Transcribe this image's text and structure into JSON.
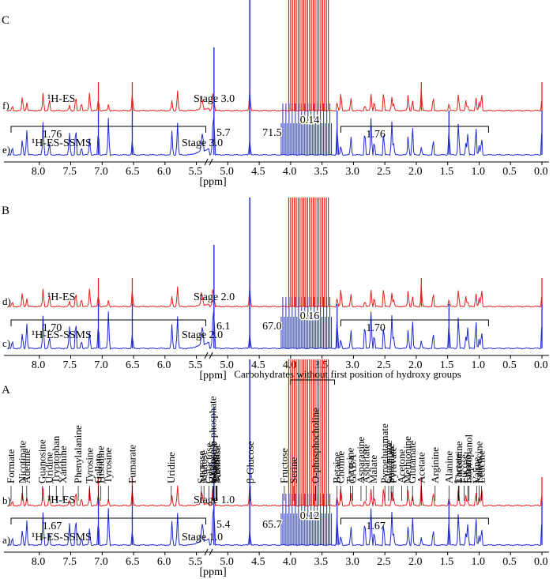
{
  "figure": {
    "description_free": true,
    "colors": {
      "es_trace": "#e8201c",
      "ssms_trace": "#1f2bd1",
      "axis": "#000000"
    }
  },
  "chart_data": [
    {
      "panel": "C",
      "type": "line",
      "xlabel": "[ppm]",
      "xlim": [
        8.5,
        0.0
      ],
      "x_reversed": true,
      "x_ticks": [
        "8.0",
        "7.5",
        "7.0",
        "6.5",
        "6.0",
        "5.5",
        "5.0",
        "4.5",
        "4.0",
        "3.5",
        "3.0",
        "2.5",
        "2.0",
        "1.5",
        "1.0",
        "0.5",
        "0.0"
      ],
      "series": [
        {
          "trace_label": "f)",
          "name": "¹H-ES",
          "stage": "Stage 3.0",
          "color": "#e8201c"
        },
        {
          "trace_label": "e)",
          "name": "¹H-ES-SSMS",
          "stage": "Stage 3.0",
          "color": "#1f2bd1"
        }
      ],
      "scale_factors": {
        "aromatic": "1.76",
        "anomeric": "5.7",
        "region_4": "71.5",
        "region_3": "0.14",
        "aliphatic": "1.76"
      },
      "peaks_ppm": [
        8.43,
        8.27,
        8.2,
        7.94,
        7.84,
        7.52,
        7.42,
        7.33,
        7.2,
        7.06,
        6.9,
        6.52,
        5.89,
        5.8,
        5.42,
        5.4,
        5.24,
        5.22,
        4.65,
        4.07,
        4.0,
        3.9,
        3.82,
        3.74,
        3.66,
        3.6,
        3.55,
        3.47,
        3.41,
        3.4,
        3.26,
        3.2,
        3.04,
        2.82,
        2.72,
        2.67,
        2.52,
        2.39,
        2.36,
        2.13,
        2.06,
        1.92,
        1.73,
        1.48,
        1.33,
        1.21,
        1.18,
        1.05,
        1.0,
        0.96,
        0.0
      ]
    },
    {
      "panel": "B",
      "type": "line",
      "xlabel": "[ppm]",
      "xlim": [
        8.5,
        0.0
      ],
      "x_reversed": true,
      "x_ticks": [
        "8.0",
        "7.5",
        "7.0",
        "6.5",
        "6.0",
        "5.5",
        "5.0",
        "4.5",
        "4.0",
        "3.5",
        "3.0",
        "2.5",
        "2.0",
        "1.5",
        "1.0",
        "0.5",
        "0.0"
      ],
      "series": [
        {
          "trace_label": "d)",
          "name": "¹H-ES",
          "stage": "Stage 2.0",
          "color": "#e8201c"
        },
        {
          "trace_label": "c)",
          "name": "¹H-ES-SSMS",
          "stage": "Stage 2.0",
          "color": "#1f2bd1"
        }
      ],
      "scale_factors": {
        "aromatic": "1.70",
        "anomeric": "6.1",
        "region_4": "67.0",
        "region_3": "0.16",
        "aliphatic": "1.70"
      },
      "peaks_ppm": [
        8.43,
        8.27,
        8.2,
        7.94,
        7.84,
        7.52,
        7.42,
        7.33,
        7.2,
        7.06,
        6.9,
        6.52,
        5.89,
        5.8,
        5.42,
        5.4,
        5.24,
        5.22,
        4.65,
        4.07,
        4.0,
        3.9,
        3.82,
        3.74,
        3.66,
        3.6,
        3.55,
        3.47,
        3.41,
        3.4,
        3.26,
        3.2,
        3.04,
        2.82,
        2.72,
        2.67,
        2.52,
        2.39,
        2.36,
        2.13,
        2.06,
        1.92,
        1.73,
        1.48,
        1.33,
        1.21,
        1.18,
        1.05,
        1.0,
        0.96,
        0.0
      ]
    },
    {
      "panel": "A",
      "type": "line",
      "xlabel": "[ppm]",
      "xlim": [
        8.5,
        0.0
      ],
      "x_reversed": true,
      "x_ticks": [
        "8.0",
        "7.5",
        "7.0",
        "6.5",
        "6.0",
        "5.5",
        "5.0",
        "4.5",
        "4.0",
        "3.5",
        "3.0",
        "2.5",
        "2.0",
        "1.5",
        "1.0",
        "0.5",
        "0.0"
      ],
      "series": [
        {
          "trace_label": "b)",
          "name": "¹H-ES",
          "stage": "Stage 1.0",
          "color": "#e8201c"
        },
        {
          "trace_label": "a)",
          "name": "¹H-ES-SSMS",
          "stage": "Stage 1.0",
          "color": "#1f2bd1"
        }
      ],
      "scale_factors": {
        "aromatic": "1.67",
        "anomeric": "5.4",
        "region_4": "65.7",
        "region_3": "0.12",
        "aliphatic": "1.67"
      },
      "peaks_ppm": [
        8.43,
        8.27,
        8.2,
        7.94,
        7.84,
        7.52,
        7.42,
        7.33,
        7.2,
        7.06,
        6.9,
        6.52,
        5.89,
        5.8,
        5.42,
        5.4,
        5.24,
        5.22,
        4.65,
        4.07,
        4.0,
        3.9,
        3.82,
        3.74,
        3.66,
        3.6,
        3.55,
        3.47,
        3.41,
        3.4,
        3.26,
        3.2,
        3.04,
        2.82,
        2.72,
        2.67,
        2.52,
        2.39,
        2.36,
        2.13,
        2.06,
        1.92,
        1.73,
        1.48,
        1.33,
        1.21,
        1.18,
        1.05,
        1.0,
        0.96,
        0.0
      ],
      "carbohydrate_label": "Carbohydrates without first position of hydroxy groups",
      "annotations": [
        {
          "label": "Formate",
          "ppm": 8.45
        },
        {
          "label": "Nicotinate",
          "ppm": 8.27
        },
        {
          "label": "Adenine",
          "ppm": 8.2
        },
        {
          "label": "Guanosine",
          "ppm": 7.95
        },
        {
          "label": "Uridine",
          "ppm": 7.84
        },
        {
          "label": "Tryptophan",
          "ppm": 7.73
        },
        {
          "label": "Xanthine",
          "ppm": 7.62
        },
        {
          "label": "Phenylalanine",
          "ppm": 7.38
        },
        {
          "label": "Tyrosine",
          "ppm": 7.2
        },
        {
          "label": "Gallate",
          "ppm": 7.06
        },
        {
          "label": "Histidine",
          "ppm": 7.02
        },
        {
          "label": "Tyrosine",
          "ppm": 6.9
        },
        {
          "label": "Fumarate",
          "ppm": 6.52
        },
        {
          "label": "Uridine",
          "ppm": 5.9
        },
        {
          "label": "Sucrose",
          "ppm": 5.42
        },
        {
          "label": "Maltose",
          "ppm": 5.38
        },
        {
          "label": "Galactose",
          "ppm": 5.3
        },
        {
          "label": "Glucose-6-phosphate",
          "ppm": 5.24
        },
        {
          "label": "Xylose",
          "ppm": 5.19
        },
        {
          "label": "α-Glucose",
          "ppm": 5.23
        },
        {
          "label": "Trehalose",
          "ppm": 5.18
        },
        {
          "label": "β-Glucose",
          "ppm": 4.64
        },
        {
          "label": "Mannose",
          "ppm": 5.17
        },
        {
          "label": "Fructose",
          "ppm": 4.1
        },
        {
          "label": "Serine",
          "ppm": 3.95
        },
        {
          "label": "O-phosphocholine",
          "ppm": 3.6
        },
        {
          "label": "Betaine",
          "ppm": 3.26
        },
        {
          "label": "Choline",
          "ppm": 3.2
        },
        {
          "label": "GABA",
          "ppm": 3.01
        },
        {
          "label": "Asparagine",
          "ppm": 2.88
        },
        {
          "label": "Tyrosine",
          "ppm": 3.05
        },
        {
          "label": "Aspartate",
          "ppm": 2.8
        },
        {
          "label": "Malate",
          "ppm": 2.68
        },
        {
          "label": "Pyroglutamate",
          "ppm": 2.5
        },
        {
          "label": "Glutamine",
          "ppm": 2.44
        },
        {
          "label": "Pyruvate",
          "ppm": 2.37
        },
        {
          "label": "Succinate",
          "ppm": 2.4
        },
        {
          "label": "Methionine",
          "ppm": 2.14
        },
        {
          "label": "Acetone",
          "ppm": 2.23
        },
        {
          "label": "Glutamate",
          "ppm": 2.06
        },
        {
          "label": "Acetate",
          "ppm": 1.92
        },
        {
          "label": "Arginine",
          "ppm": 1.7
        },
        {
          "label": "Alanine",
          "ppm": 1.48
        },
        {
          "label": "Lactate",
          "ppm": 1.33
        },
        {
          "label": "Threonine",
          "ppm": 1.32
        },
        {
          "label": "Fucose",
          "ppm": 1.24
        },
        {
          "label": "Ethanol",
          "ppm": 1.18
        },
        {
          "label": "Isopropanol",
          "ppm": 1.16
        },
        {
          "label": "Valine",
          "ppm": 1.04
        },
        {
          "label": "Isoleucine",
          "ppm": 1.0
        },
        {
          "label": "Leucine",
          "ppm": 0.96
        }
      ]
    }
  ]
}
